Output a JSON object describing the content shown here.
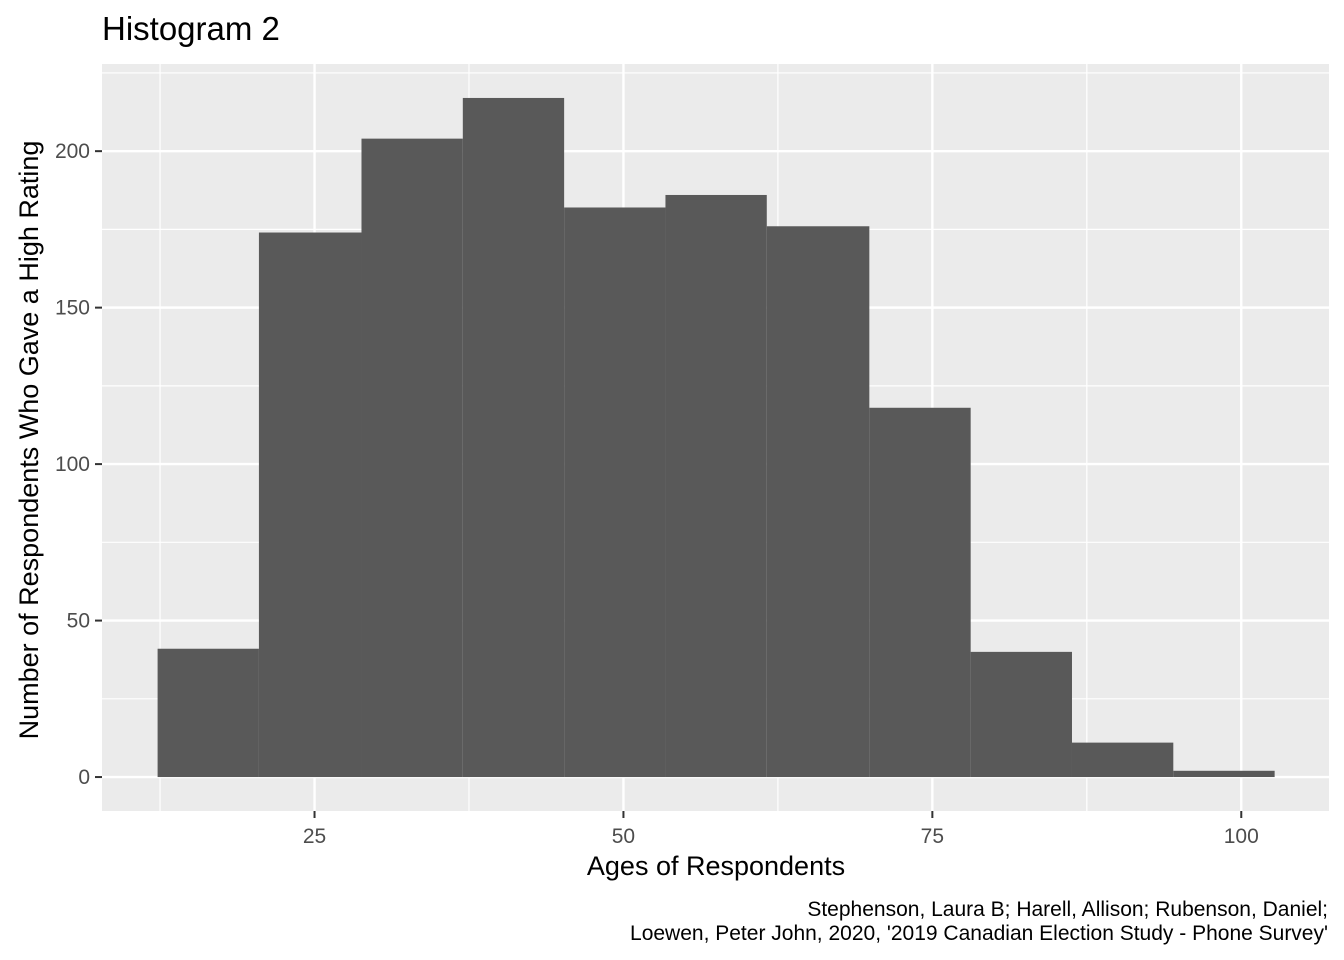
{
  "chart_data": {
    "type": "bar",
    "title": "Histogram 2",
    "xlabel": "Ages of Respondents",
    "ylabel": "Number of Respondents Who Gave a High Rating",
    "caption_lines": [
      "Stephenson, Laura B; Harell, Allison; Rubenson, Daniel;",
      "Loewen, Peter John, 2020, '2019 Canadian Election Study - Phone Survey'"
    ],
    "bins": [
      {
        "x0": 12.3,
        "x1": 20.5,
        "count": 41
      },
      {
        "x0": 20.5,
        "x1": 28.8,
        "count": 174
      },
      {
        "x0": 28.8,
        "x1": 37.0,
        "count": 204
      },
      {
        "x0": 37.0,
        "x1": 45.2,
        "count": 217
      },
      {
        "x0": 45.2,
        "x1": 53.4,
        "count": 182
      },
      {
        "x0": 53.4,
        "x1": 61.6,
        "count": 186
      },
      {
        "x0": 61.6,
        "x1": 69.9,
        "count": 176
      },
      {
        "x0": 69.9,
        "x1": 78.1,
        "count": 118
      },
      {
        "x0": 78.1,
        "x1": 86.3,
        "count": 40
      },
      {
        "x0": 86.3,
        "x1": 94.5,
        "count": 11
      },
      {
        "x0": 94.5,
        "x1": 102.7,
        "count": 2
      }
    ],
    "xlim": [
      7.8,
      107.1
    ],
    "ylim": [
      -10.85,
      227.85
    ],
    "xticks": [
      25,
      50,
      75,
      100
    ],
    "yticks": [
      0,
      50,
      100,
      150,
      200
    ],
    "grid": true,
    "bar_color": "#595959",
    "panel_background": "#ebebeb",
    "grid_color": "#ffffff"
  }
}
